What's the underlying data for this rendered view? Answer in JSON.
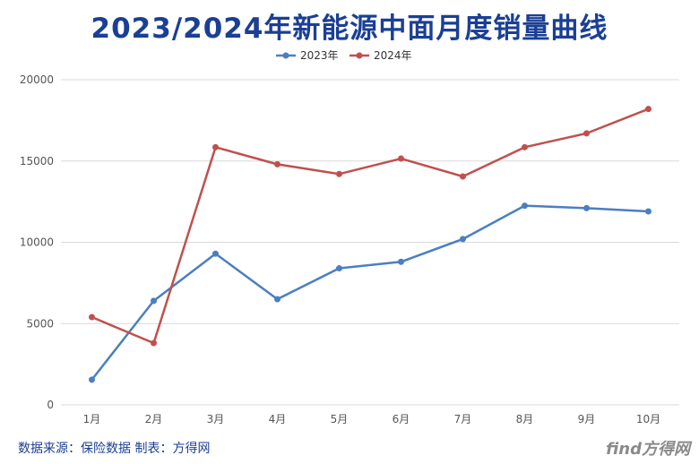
{
  "title": "2023/2024年新能源中面月度销量曲线",
  "source_note": "数据来源：保险数据 制表：方得网",
  "watermark": "find方得网",
  "chart_data": {
    "type": "line",
    "title": "2023/2024年新能源中面月度销量曲线",
    "xlabel": "",
    "ylabel": "",
    "categories": [
      "1月",
      "2月",
      "3月",
      "4月",
      "5月",
      "6月",
      "7月",
      "8月",
      "9月",
      "10月"
    ],
    "ylim": [
      0,
      20000
    ],
    "yticks": [
      0,
      5000,
      10000,
      15000,
      20000
    ],
    "grid": true,
    "legend_position": "top-center",
    "series": [
      {
        "name": "2023年",
        "color": "#4a7fc1",
        "values": [
          1550,
          6400,
          9300,
          6500,
          8400,
          8800,
          10200,
          12250,
          12100,
          11900
        ]
      },
      {
        "name": "2024年",
        "color": "#c0504d",
        "values": [
          5400,
          3800,
          15850,
          14800,
          14200,
          15150,
          14050,
          15850,
          16700,
          18200
        ]
      }
    ]
  }
}
